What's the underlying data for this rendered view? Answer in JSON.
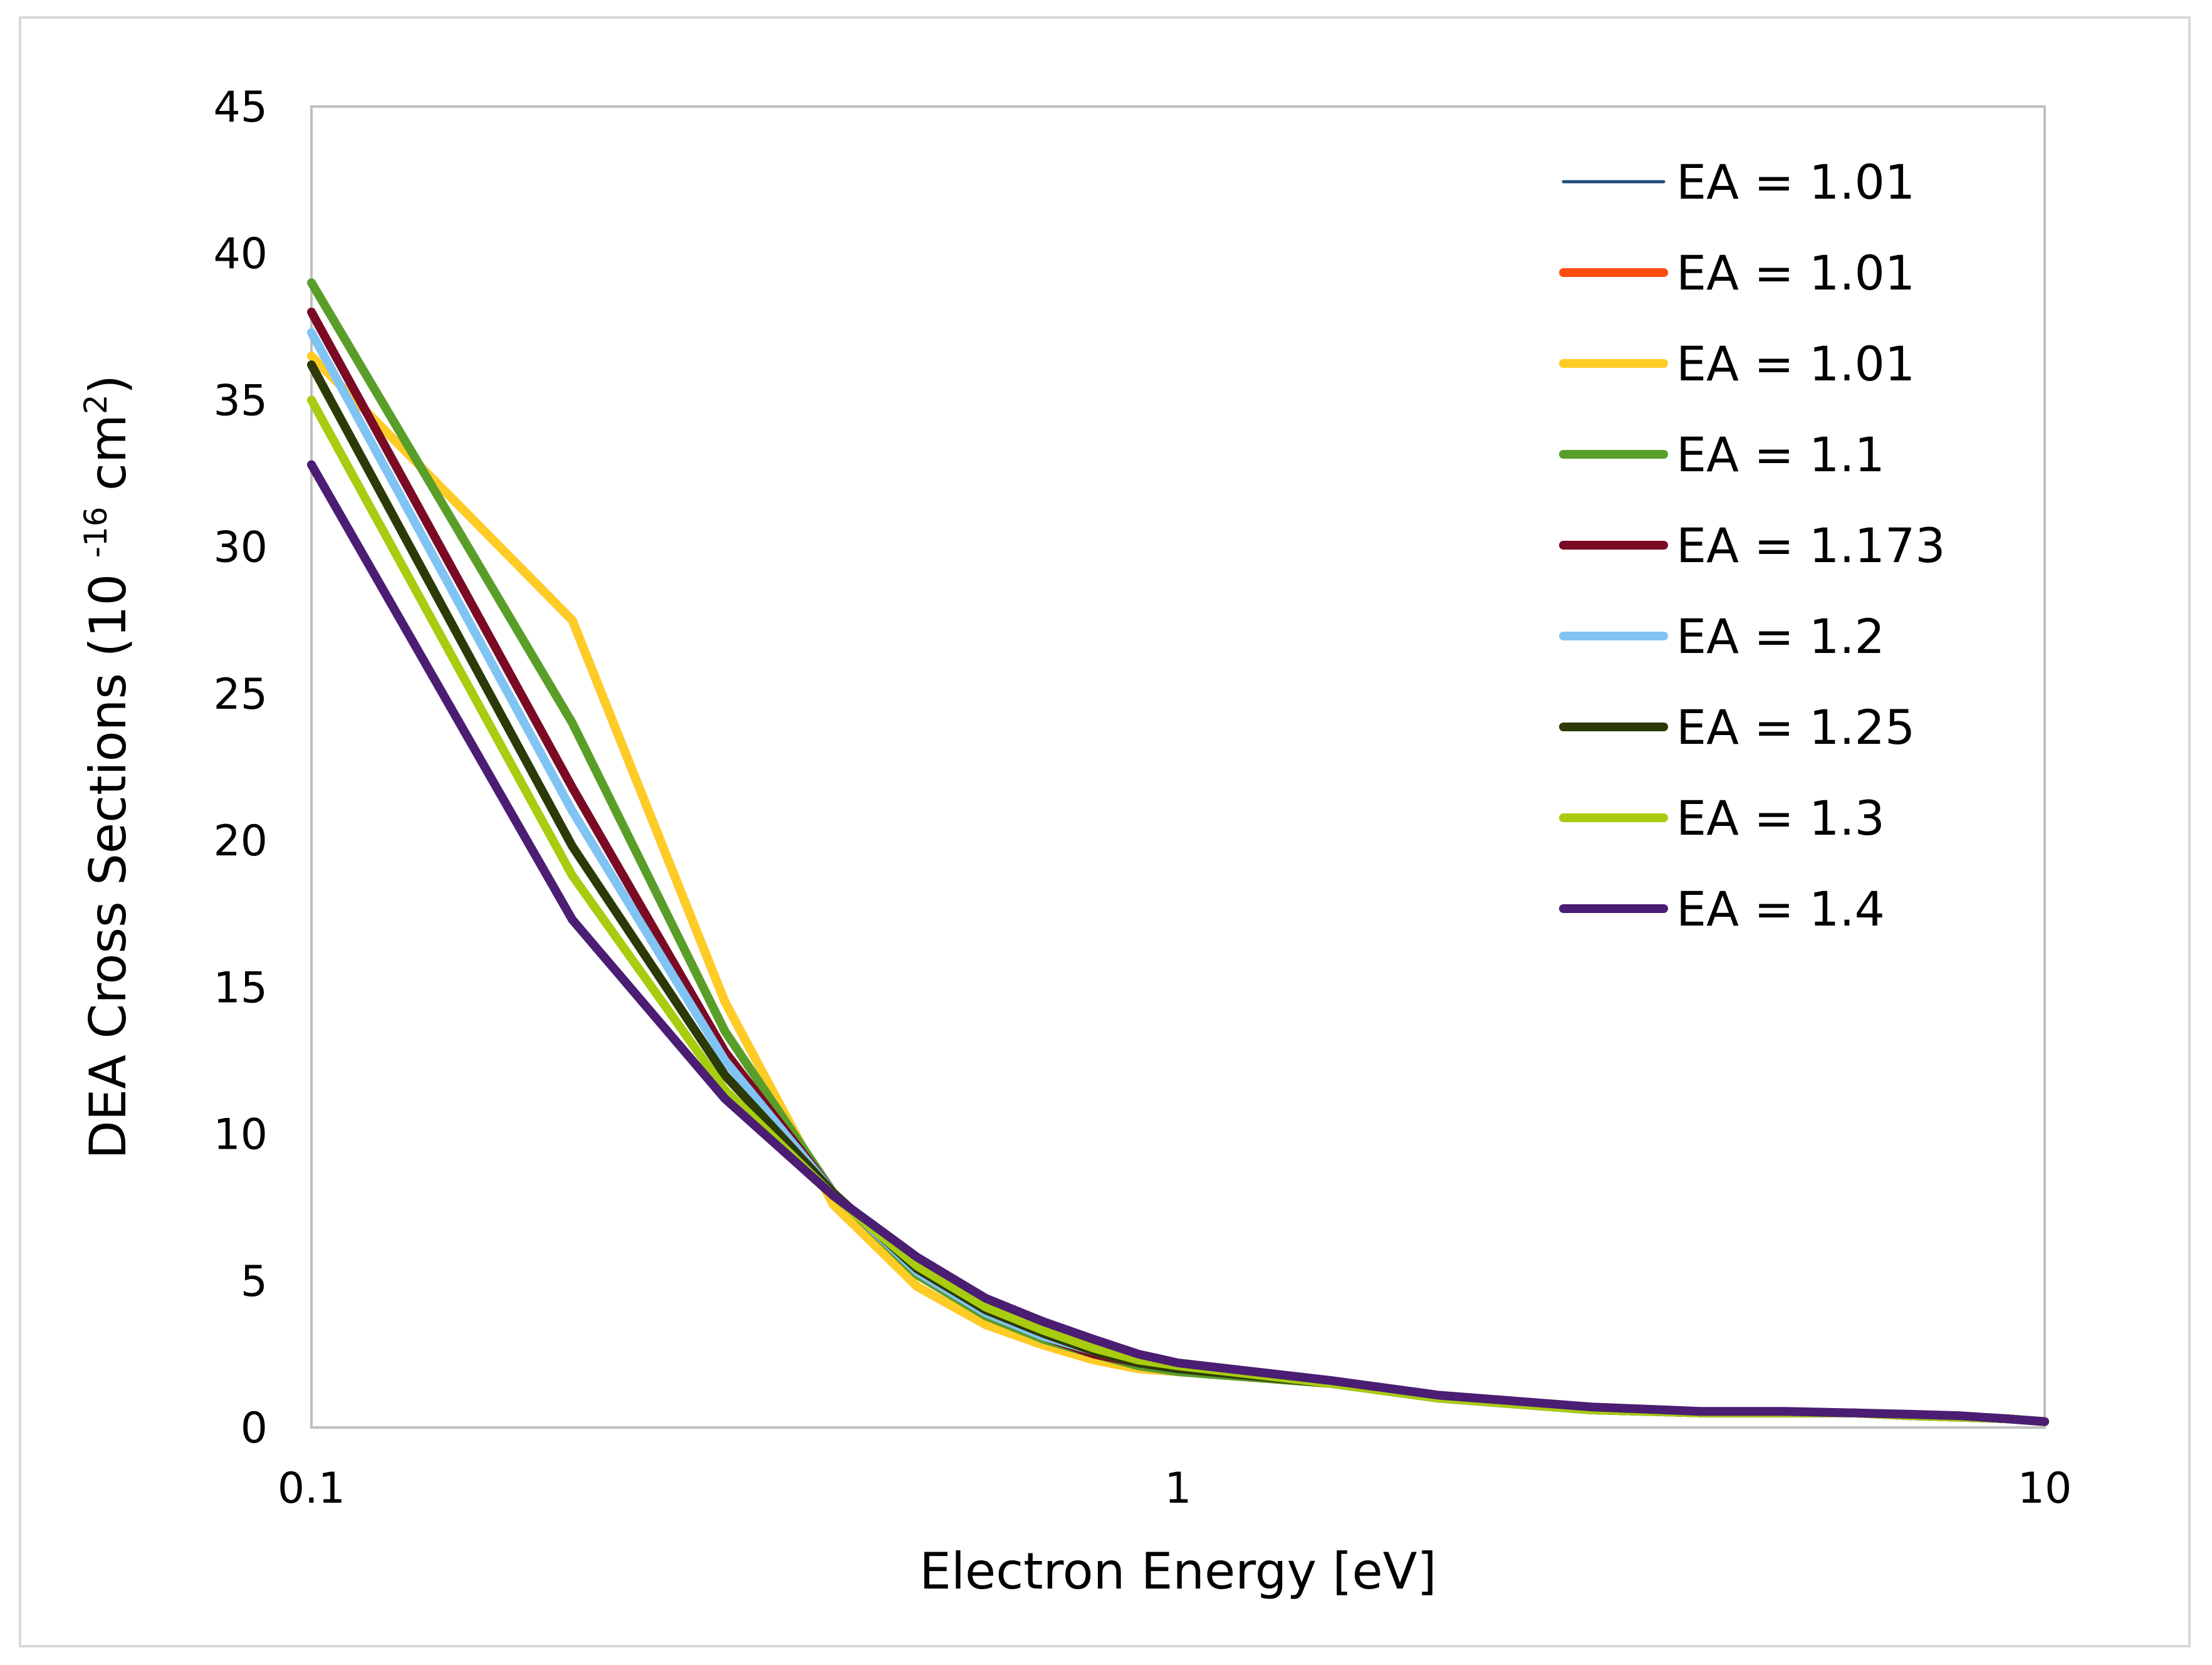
{
  "chart_data": {
    "type": "line",
    "title": "",
    "xlabel": "Electron Energy [eV]",
    "ylabel_main": "DEA Cross Sections (10 ",
    "ylabel_exp1": "-16",
    "ylabel_unit": " cm",
    "ylabel_exp2": "2",
    "ylabel_close": ")",
    "xscale": "log",
    "xlim": [
      0.1,
      10
    ],
    "ylim": [
      0,
      45
    ],
    "xticks": [
      {
        "value": 0.1,
        "label": "0.1"
      },
      {
        "value": 1,
        "label": "1"
      },
      {
        "value": 10,
        "label": "10"
      }
    ],
    "yticks": [
      {
        "value": 0,
        "label": "0"
      },
      {
        "value": 5,
        "label": "5"
      },
      {
        "value": 10,
        "label": "10"
      },
      {
        "value": 15,
        "label": "15"
      },
      {
        "value": 20,
        "label": "20"
      },
      {
        "value": 25,
        "label": "25"
      },
      {
        "value": 30,
        "label": "30"
      },
      {
        "value": 35,
        "label": "35"
      },
      {
        "value": 40,
        "label": "40"
      },
      {
        "value": 45,
        "label": "45"
      }
    ],
    "grid": false,
    "legend_position": "top-right",
    "x": [
      0.1,
      0.2,
      0.3,
      0.4,
      0.5,
      0.6,
      0.7,
      0.8,
      0.9,
      1.0,
      1.5,
      2,
      3,
      4,
      5,
      6,
      7,
      8,
      9,
      10
    ],
    "series": [
      {
        "name": "EA = 1.01",
        "color": "#1f4e79",
        "width": "thin",
        "values": [
          36.5,
          27.5,
          14.5,
          7.6,
          4.8,
          3.5,
          2.8,
          2.3,
          2.0,
          1.9,
          1.5,
          1.0,
          0.6,
          0.5,
          0.5,
          0.5,
          0.4,
          0.35,
          0.3,
          0.2
        ]
      },
      {
        "name": "EA = 1.01",
        "color": "#fc4c0f",
        "width": "thick",
        "values": [
          36.5,
          27.5,
          14.5,
          7.6,
          4.8,
          3.5,
          2.8,
          2.3,
          2.0,
          1.9,
          1.5,
          1.0,
          0.6,
          0.5,
          0.5,
          0.5,
          0.4,
          0.35,
          0.3,
          0.2
        ]
      },
      {
        "name": "EA = 1.01",
        "color": "#ffcc25",
        "width": "thick",
        "values": [
          36.5,
          27.5,
          14.5,
          7.6,
          4.8,
          3.5,
          2.8,
          2.3,
          2.0,
          1.9,
          1.5,
          1.0,
          0.6,
          0.5,
          0.5,
          0.5,
          0.4,
          0.35,
          0.3,
          0.2
        ]
      },
      {
        "name": "EA = 1.1",
        "color": "#5a9e2a",
        "width": "thick",
        "values": [
          39.0,
          24.0,
          13.5,
          8.0,
          5.2,
          3.8,
          3.0,
          2.5,
          2.1,
          1.9,
          1.5,
          1.0,
          0.6,
          0.5,
          0.5,
          0.5,
          0.4,
          0.35,
          0.3,
          0.2
        ]
      },
      {
        "name": "EA = 1.173",
        "color": "#7b0a25",
        "width": "thick",
        "values": [
          38.0,
          21.8,
          12.8,
          8.0,
          5.3,
          3.9,
          3.1,
          2.5,
          2.2,
          2.0,
          1.5,
          1.0,
          0.6,
          0.5,
          0.5,
          0.5,
          0.4,
          0.35,
          0.3,
          0.2
        ]
      },
      {
        "name": "EA = 1.2",
        "color": "#80c4f4",
        "width": "thick",
        "values": [
          37.3,
          21.0,
          12.5,
          8.0,
          5.3,
          3.9,
          3.1,
          2.6,
          2.2,
          2.0,
          1.5,
          1.0,
          0.6,
          0.5,
          0.5,
          0.5,
          0.4,
          0.35,
          0.3,
          0.2
        ]
      },
      {
        "name": "EA = 1.25",
        "color": "#2b3a07",
        "width": "thick",
        "values": [
          36.2,
          19.8,
          12.0,
          8.0,
          5.4,
          4.0,
          3.2,
          2.6,
          2.2,
          2.0,
          1.5,
          1.0,
          0.6,
          0.5,
          0.5,
          0.5,
          0.4,
          0.35,
          0.3,
          0.2
        ]
      },
      {
        "name": "EA = 1.3",
        "color": "#a8cc10",
        "width": "thick",
        "values": [
          35.0,
          18.8,
          11.5,
          7.9,
          5.5,
          4.1,
          3.3,
          2.7,
          2.3,
          2.1,
          1.5,
          1.0,
          0.6,
          0.5,
          0.5,
          0.5,
          0.4,
          0.35,
          0.3,
          0.2
        ]
      },
      {
        "name": "EA = 1.4",
        "color": "#4b1d73",
        "width": "thick",
        "values": [
          32.8,
          17.3,
          11.2,
          7.9,
          5.8,
          4.4,
          3.6,
          3.0,
          2.5,
          2.2,
          1.6,
          1.1,
          0.7,
          0.55,
          0.55,
          0.5,
          0.45,
          0.4,
          0.3,
          0.2
        ]
      }
    ]
  }
}
